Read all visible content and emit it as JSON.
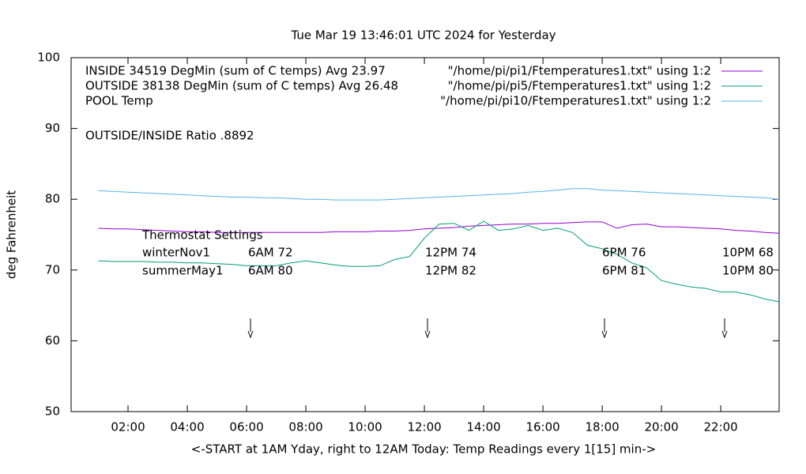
{
  "chart_data": {
    "type": "line",
    "title": "Tue Mar 19 13:46:01 UTC 2024 for Yesterday",
    "x_label": "<-START at 1AM Yday, right to 12AM Today:  Temp Readings every 1[15] min->",
    "y_label": "deg Fahrenheit",
    "xlim": [
      0.08,
      23.97
    ],
    "xticks": [
      {
        "value": 2,
        "label": "02:00"
      },
      {
        "value": 4,
        "label": "04:00"
      },
      {
        "value": 6,
        "label": "06:00"
      },
      {
        "value": 8,
        "label": "08:00"
      },
      {
        "value": 10,
        "label": "10:00"
      },
      {
        "value": 12,
        "label": "12:00"
      },
      {
        "value": 14,
        "label": "14:00"
      },
      {
        "value": 16,
        "label": "16:00"
      },
      {
        "value": 18,
        "label": "18:00"
      },
      {
        "value": 20,
        "label": "20:00"
      },
      {
        "value": 22,
        "label": "22:00"
      }
    ],
    "ylim": [
      50,
      100
    ],
    "yticks": [
      50,
      60,
      70,
      80,
      90,
      100
    ],
    "grid": false,
    "legend": "top-right",
    "x": [
      1,
      1.5,
      2,
      2.5,
      3,
      3.5,
      4,
      4.5,
      5,
      5.5,
      6,
      6.5,
      7,
      7.5,
      8,
      8.5,
      9,
      9.5,
      10,
      10.5,
      11,
      11.5,
      12,
      12.5,
      13,
      13.5,
      14,
      14.5,
      15,
      15.5,
      16,
      16.5,
      17,
      17.5,
      18,
      18.5,
      19,
      19.5,
      20,
      20.5,
      21,
      21.5,
      22,
      22.5,
      23,
      23.5,
      23.97
    ],
    "series": [
      {
        "name": "\"/home/pi/pi1/Ftemperatures1.txt\" using 1:2",
        "color": "#9400d3",
        "values": [
          75.9,
          75.8,
          75.8,
          75.7,
          75.6,
          75.5,
          75.4,
          75.4,
          75.3,
          75.3,
          75.3,
          75.3,
          75.3,
          75.3,
          75.3,
          75.3,
          75.4,
          75.4,
          75.4,
          75.5,
          75.5,
          75.6,
          75.8,
          75.9,
          76.0,
          76.2,
          76.3,
          76.4,
          76.5,
          76.5,
          76.6,
          76.6,
          76.7,
          76.8,
          76.8,
          75.9,
          76.4,
          76.5,
          76.1,
          76.1,
          76.0,
          75.9,
          75.8,
          75.6,
          75.5,
          75.3,
          75.2
        ]
      },
      {
        "name": "\"/home/pi/pi5/Ftemperatures1.txt\" using 1:2",
        "color": "#009e73",
        "values": [
          71.3,
          71.2,
          71.2,
          71.2,
          71.1,
          71.1,
          71.0,
          71.0,
          70.9,
          70.8,
          70.6,
          70.6,
          70.6,
          71.0,
          71.3,
          71.0,
          70.7,
          70.5,
          70.5,
          70.6,
          71.5,
          71.9,
          74.5,
          76.5,
          76.6,
          75.6,
          76.9,
          75.6,
          75.8,
          76.3,
          75.6,
          75.9,
          75.3,
          73.5,
          73.0,
          72.2,
          71.0,
          70.3,
          68.5,
          68.0,
          67.6,
          67.4,
          66.9,
          66.9,
          66.5,
          65.9,
          65.5
        ]
      },
      {
        "name": "\"/home/pi/pi10/Ftemperatures1.txt\" using 1:2",
        "color": "#56b4e9",
        "values": [
          81.2,
          81.1,
          81.0,
          80.9,
          80.8,
          80.7,
          80.6,
          80.5,
          80.4,
          80.3,
          80.3,
          80.2,
          80.2,
          80.1,
          80.0,
          80.0,
          79.9,
          79.9,
          79.9,
          79.9,
          80.0,
          80.1,
          80.2,
          80.3,
          80.4,
          80.5,
          80.6,
          80.7,
          80.8,
          81.0,
          81.1,
          81.3,
          81.5,
          81.5,
          81.3,
          81.2,
          81.1,
          81.0,
          80.9,
          80.8,
          80.7,
          80.6,
          80.5,
          80.4,
          80.3,
          80.2,
          80.0
        ]
      }
    ],
    "annotations": [
      "INSIDE 34519 DegMin (sum of C temps) Avg 23.97",
      "OUTSIDE 38138 DegMin (sum of C temps) Avg 26.48",
      "POOL Temp",
      "OUTSIDE/INSIDE Ratio .8892",
      "Thermostat Settings",
      "winterNov1",
      "6AM 72",
      "12PM 74",
      "6PM 76",
      "10PM 68",
      "summerMay1",
      "6AM 80",
      "12PM 82",
      "6PM 81",
      "10PM 80"
    ]
  }
}
